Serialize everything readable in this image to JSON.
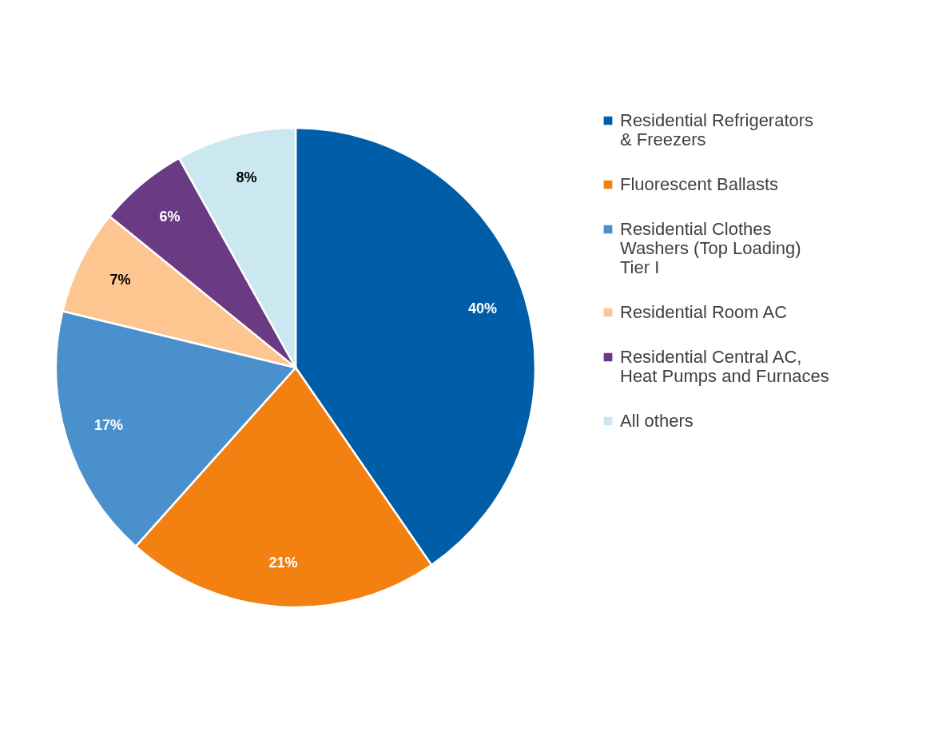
{
  "chart_data": {
    "type": "pie",
    "categories": [
      "Residential Refrigerators & Freezers",
      "Fluorescent Ballasts",
      "Residential Clothes Washers (Top Loading) Tier I",
      "Residential Room AC",
      "Residential Central AC, Heat Pumps and Furnaces",
      "All others"
    ],
    "values": [
      40,
      21,
      17,
      7,
      6,
      8
    ],
    "colors": [
      "#005ea8",
      "#f38111",
      "#4a90cd",
      "#fdc590",
      "#6a3a82",
      "#cbe8f0"
    ],
    "value_labels": [
      "40%",
      "21%",
      "17%",
      "7%",
      "6%",
      "8%"
    ],
    "legend": "right"
  }
}
